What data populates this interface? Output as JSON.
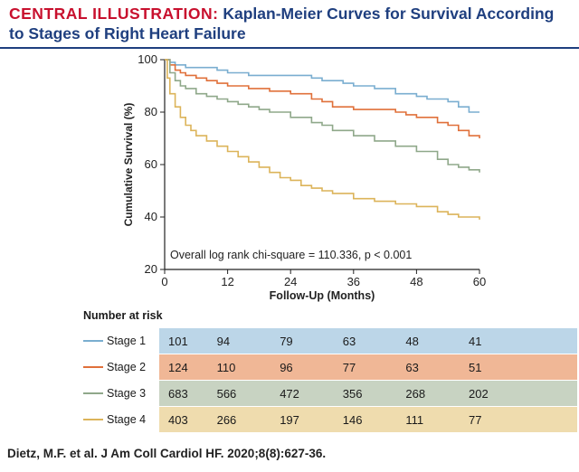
{
  "header": {
    "prefix": "CENTRAL ILLUSTRATION:",
    "title": "Kaplan-Meier Curves for Survival According to Stages of Right Heart Failure"
  },
  "chart_data": {
    "type": "line",
    "title": "",
    "xlabel": "Follow-Up (Months)",
    "ylabel": "Cumulative Survival (%)",
    "xlim": [
      0,
      60
    ],
    "ylim": [
      20,
      100
    ],
    "xticks": [
      0,
      12,
      24,
      36,
      48,
      60
    ],
    "yticks": [
      20,
      40,
      60,
      80,
      100
    ],
    "annotation": "Overall log rank chi-square = 110.336, p < 0.001",
    "series": [
      {
        "name": "Stage 1",
        "color": "#7aaed0",
        "x": [
          0,
          1,
          2,
          4,
          6,
          8,
          10,
          12,
          16,
          20,
          24,
          28,
          30,
          34,
          36,
          40,
          44,
          48,
          50,
          54,
          56,
          58,
          60
        ],
        "y": [
          100,
          99,
          98,
          97,
          97,
          97,
          96,
          95,
          94,
          94,
          94,
          93,
          92,
          91,
          90,
          89,
          87,
          86,
          85,
          84,
          82,
          80,
          80
        ]
      },
      {
        "name": "Stage 2",
        "color": "#e0703a",
        "x": [
          0,
          1,
          2,
          3,
          4,
          6,
          8,
          10,
          12,
          16,
          20,
          24,
          28,
          30,
          32,
          36,
          40,
          44,
          46,
          48,
          50,
          52,
          54,
          56,
          58,
          60
        ],
        "y": [
          100,
          98,
          96,
          95,
          94,
          93,
          92,
          91,
          90,
          89,
          88,
          87,
          85,
          84,
          82,
          81,
          81,
          80,
          79,
          78,
          78,
          76,
          75,
          73,
          71,
          70
        ]
      },
      {
        "name": "Stage 3",
        "color": "#8fa88a",
        "x": [
          0,
          1,
          2,
          3,
          4,
          6,
          8,
          10,
          12,
          14,
          16,
          18,
          20,
          24,
          28,
          30,
          32,
          36,
          40,
          44,
          48,
          52,
          54,
          56,
          58,
          60
        ],
        "y": [
          100,
          95,
          92,
          90,
          89,
          87,
          86,
          85,
          84,
          83,
          82,
          81,
          80,
          78,
          76,
          75,
          73,
          71,
          69,
          67,
          65,
          62,
          60,
          59,
          58,
          57
        ]
      },
      {
        "name": "Stage 4",
        "color": "#dcb45a",
        "x": [
          0,
          0.5,
          1,
          2,
          3,
          4,
          5,
          6,
          8,
          10,
          12,
          14,
          16,
          18,
          20,
          22,
          24,
          26,
          28,
          30,
          32,
          36,
          40,
          44,
          48,
          52,
          54,
          56,
          58,
          60
        ],
        "y": [
          100,
          93,
          87,
          82,
          78,
          75,
          73,
          71,
          69,
          67,
          65,
          63,
          61,
          59,
          57,
          55,
          54,
          52,
          51,
          50,
          49,
          47,
          46,
          45,
          44,
          42,
          41,
          40,
          40,
          39
        ]
      }
    ]
  },
  "risk_table": {
    "title": "Number at risk",
    "rows": [
      {
        "label": "Stage 1",
        "line_color": "#7aaed0",
        "band_color": "#bcd6e8",
        "values": [
          "101",
          "94",
          "79",
          "63",
          "48",
          "41"
        ]
      },
      {
        "label": "Stage 2",
        "line_color": "#e0703a",
        "band_color": "#f0b796",
        "values": [
          "124",
          "110",
          "96",
          "77",
          "63",
          "51"
        ]
      },
      {
        "label": "Stage 3",
        "line_color": "#8fa88a",
        "band_color": "#c8d3c2",
        "values": [
          "683",
          "566",
          "472",
          "356",
          "268",
          "202"
        ]
      },
      {
        "label": "Stage 4",
        "line_color": "#dcb45a",
        "band_color": "#efdcae",
        "values": [
          "403",
          "266",
          "197",
          "146",
          "111",
          "77"
        ]
      }
    ]
  },
  "citation": "Dietz, M.F. et al. J Am Coll Cardiol HF. 2020;8(8):627-36."
}
